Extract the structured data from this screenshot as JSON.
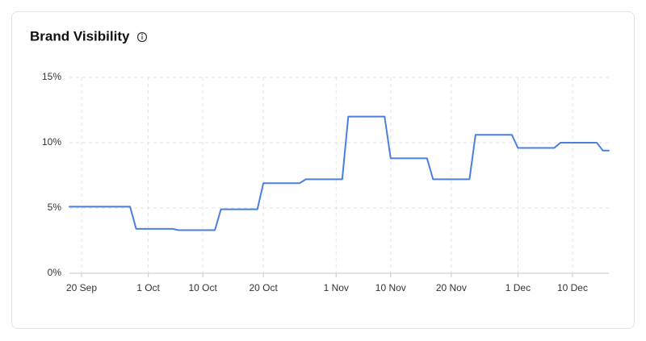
{
  "chart_data": {
    "type": "line",
    "title": "Brand Visibility",
    "x": [
      "18 Sep",
      "28 Sep",
      "29 Sep",
      "5 Oct",
      "6 Oct",
      "12 Oct",
      "13 Oct",
      "19 Oct",
      "20 Oct",
      "26 Oct",
      "27 Oct",
      "2 Nov",
      "3 Nov",
      "9 Nov",
      "10 Nov",
      "16 Nov",
      "17 Nov",
      "23 Nov",
      "24 Nov",
      "30 Nov",
      "1 Dec",
      "7 Dec",
      "8 Dec",
      "14 Dec",
      "15 Dec",
      "16 Dec"
    ],
    "values": [
      5.1,
      5.1,
      3.4,
      3.4,
      3.3,
      3.3,
      4.9,
      4.9,
      6.9,
      6.9,
      7.2,
      7.2,
      12.0,
      12.0,
      8.8,
      8.8,
      7.2,
      7.2,
      10.6,
      10.6,
      9.6,
      9.6,
      10.0,
      10.0,
      9.4,
      9.4
    ],
    "color": "#4a7fe0",
    "xlim": [
      "18 Sep",
      "16 Dec"
    ],
    "xticks": [
      "20 Sep",
      "1 Oct",
      "10 Oct",
      "20 Oct",
      "1 Nov",
      "10 Nov",
      "20 Nov",
      "1 Dec",
      "10 Dec"
    ],
    "ylim": [
      0,
      15
    ],
    "yticks": [
      {
        "value": 0,
        "label": "0%"
      },
      {
        "value": 5,
        "label": "5%"
      },
      {
        "value": 10,
        "label": "10%"
      },
      {
        "value": 15,
        "label": "15%"
      }
    ],
    "grid": true
  }
}
